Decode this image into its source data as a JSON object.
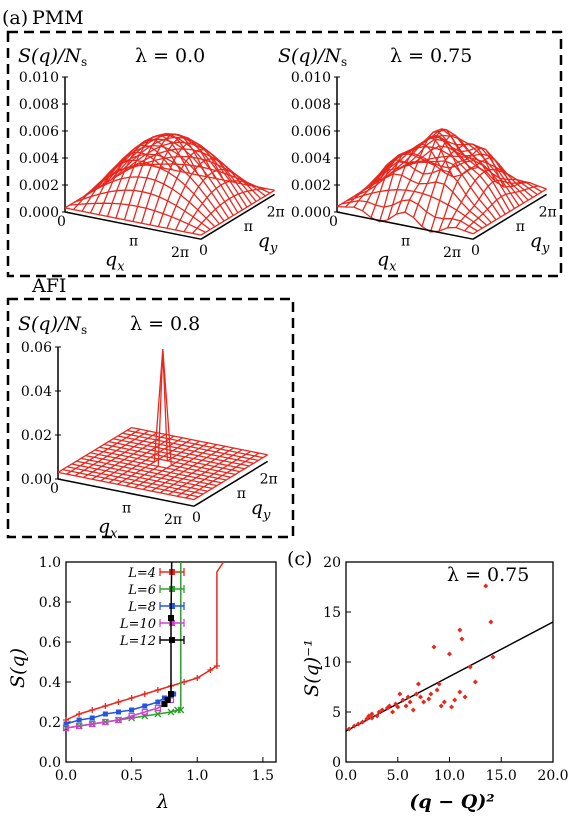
{
  "panel_labels": {
    "a": "(a)",
    "c": "(c)"
  },
  "phase_labels": {
    "pmm": "PMM",
    "afi": "AFI"
  },
  "surface_plots": [
    {
      "zlabel": "S(q)/N",
      "zlabel_sub": "s",
      "lambda_text": "λ = 0.0",
      "zticks": [
        "0.010",
        "0.008",
        "0.006",
        "0.004",
        "0.002",
        "0.000"
      ],
      "peak": "smooth dome",
      "max": 0.005
    },
    {
      "zlabel": "S(q)/N",
      "zlabel_sub": "s",
      "lambda_text": "λ = 0.75",
      "zticks": [
        "0.010",
        "0.008",
        "0.006",
        "0.004",
        "0.002",
        "0.000"
      ],
      "peak": "broad maximum at (π,π)",
      "max": 0.005
    },
    {
      "zlabel": "S(q)/N",
      "zlabel_sub": "s",
      "lambda_text": "λ = 0.8",
      "zticks": [
        "0.06",
        "0.04",
        "0.02",
        "0.00"
      ],
      "peak": "sharp peak at (π,π)",
      "max": 0.055
    }
  ],
  "surface_axes": {
    "qx_label": "q",
    "qx_sub": "x",
    "qy_label": "q",
    "qy_sub": "y",
    "zero": "0",
    "pi": "π",
    "two_pi": "2π"
  },
  "colors": {
    "surface": "#e8281e",
    "L4": "#e8281e",
    "L6": "#2ca02c",
    "L8": "#2255e0",
    "L10": "#cc44cc",
    "L12": "#000000",
    "fit": "#000000",
    "points": "#e8281e"
  },
  "chart_data": [
    {
      "type": "line",
      "xlabel": "λ",
      "ylabel": "S(q)",
      "xlim": [
        0,
        1.6
      ],
      "ylim": [
        0,
        1.0
      ],
      "xticks": [
        "0.0",
        "0.5",
        "1.0",
        "1.5"
      ],
      "yticks": [
        "0.0",
        "0.2",
        "0.4",
        "0.6",
        "0.8",
        "1.0"
      ],
      "legend_position": "top-left",
      "series": [
        {
          "name": "L=4",
          "color_key": "L4",
          "x": [
            0,
            0.1,
            0.2,
            0.3,
            0.4,
            0.5,
            0.6,
            0.7,
            0.8,
            0.9,
            1.0,
            1.1,
            1.15,
            1.15,
            1.2
          ],
          "y": [
            0.21,
            0.24,
            0.26,
            0.28,
            0.3,
            0.32,
            0.34,
            0.36,
            0.38,
            0.4,
            0.42,
            0.46,
            0.48,
            0.95,
            1.0
          ]
        },
        {
          "name": "L=6",
          "color_key": "L6",
          "x": [
            0,
            0.1,
            0.2,
            0.3,
            0.4,
            0.5,
            0.6,
            0.7,
            0.8,
            0.85,
            0.875,
            0.875
          ],
          "y": [
            0.17,
            0.18,
            0.19,
            0.2,
            0.21,
            0.22,
            0.23,
            0.24,
            0.25,
            0.26,
            0.26,
            1.0
          ]
        },
        {
          "name": "L=8",
          "color_key": "L8",
          "x": [
            0,
            0.1,
            0.2,
            0.3,
            0.4,
            0.5,
            0.6,
            0.7,
            0.75,
            0.8,
            0.82
          ],
          "y": [
            0.19,
            0.21,
            0.22,
            0.24,
            0.25,
            0.26,
            0.28,
            0.3,
            0.32,
            0.33,
            0.34
          ]
        },
        {
          "name": "L=10",
          "color_key": "L10",
          "x": [
            0,
            0.1,
            0.2,
            0.3,
            0.4,
            0.5,
            0.6,
            0.7,
            0.75,
            0.8
          ],
          "y": [
            0.17,
            0.18,
            0.19,
            0.2,
            0.21,
            0.23,
            0.25,
            0.27,
            0.29,
            0.31
          ]
        },
        {
          "name": "L=12",
          "color_key": "L12",
          "x": [
            0.75,
            0.775,
            0.8,
            0.8,
            0.805
          ],
          "y": [
            0.29,
            0.31,
            0.34,
            0.72,
            1.0
          ]
        }
      ]
    },
    {
      "type": "scatter",
      "annotation": "λ = 0.75",
      "xlabel": "(q − Q)²",
      "ylabel": "S(q)⁻¹",
      "xlim": [
        0,
        20
      ],
      "ylim": [
        0,
        20
      ],
      "xticks": [
        "0.0",
        "5.0",
        "10.0",
        "15.0",
        "20.0"
      ],
      "yticks": [
        "0",
        "5",
        "10",
        "15",
        "20"
      ],
      "fit_line": {
        "x": [
          0,
          20
        ],
        "y": [
          3.1,
          14.0
        ]
      },
      "points": {
        "x": [
          0.3,
          0.8,
          1.2,
          1.6,
          2.0,
          2.2,
          2.5,
          2.5,
          3.0,
          3.2,
          3.5,
          4.0,
          4.2,
          4.5,
          4.8,
          5.0,
          5.2,
          5.5,
          5.8,
          6.0,
          6.2,
          6.5,
          6.8,
          7.0,
          7.2,
          7.5,
          8.0,
          8.2,
          8.5,
          8.8,
          9.0,
          9.2,
          9.5,
          10.0,
          10.2,
          10.5,
          11.0,
          11.0,
          11.2,
          11.5,
          12.0,
          12.5,
          13.5,
          14.0,
          14.2
        ],
        "y": [
          3.3,
          3.6,
          3.8,
          4.0,
          4.3,
          4.6,
          4.4,
          4.8,
          4.6,
          5.0,
          5.2,
          5.4,
          5.6,
          5.0,
          5.8,
          5.5,
          6.8,
          6.2,
          5.6,
          6.5,
          6.0,
          5.2,
          6.8,
          7.8,
          6.5,
          6.0,
          6.3,
          6.8,
          11.5,
          7.2,
          7.8,
          5.6,
          6.0,
          10.8,
          5.5,
          6.2,
          13.2,
          7.0,
          12.3,
          6.5,
          9.5,
          8.0,
          17.6,
          14.0,
          10.5
        ]
      }
    }
  ]
}
